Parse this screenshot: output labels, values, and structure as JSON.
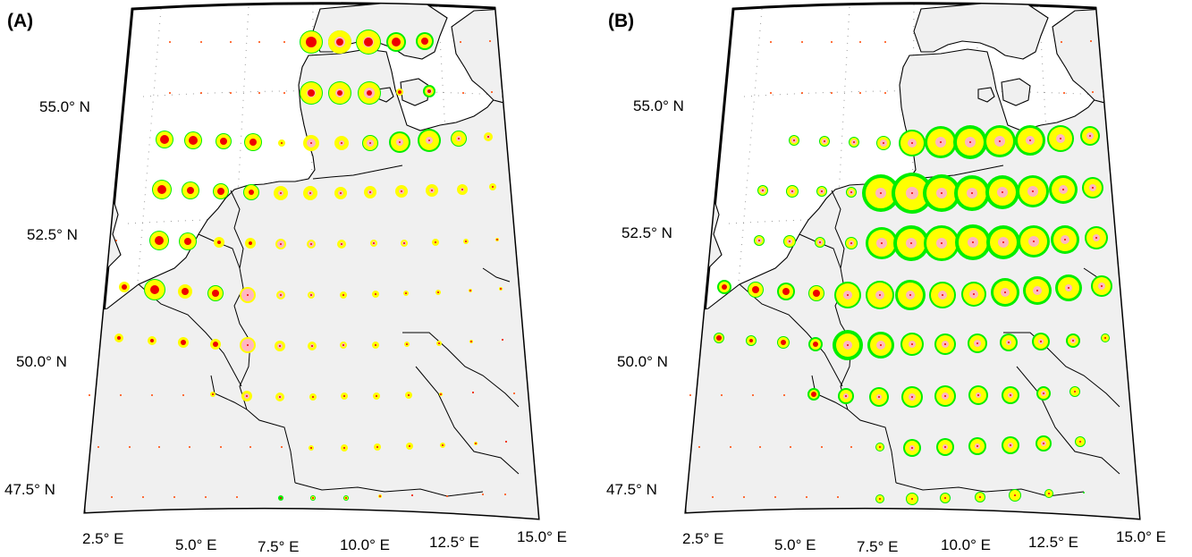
{
  "panels": [
    {
      "label": "(A)",
      "lat_labels": [
        "55.0° N",
        "52.5° N",
        "50.0° N",
        "47.5° N"
      ],
      "lon_labels": [
        "2.5° E",
        "5.0° E",
        "7.5° E",
        "10.0° E",
        "12.5° E",
        "15.0° E"
      ]
    },
    {
      "label": "(B)",
      "lat_labels": [
        "55.0° N",
        "52.5° N",
        "50.0° N",
        "47.5° N"
      ],
      "lon_labels": [
        "2.5° E",
        "5.0° E",
        "7.5° E",
        "10.0° E",
        "12.5° E",
        "15.0° E"
      ]
    }
  ],
  "legend_colors": {
    "ocean": "#ffffff",
    "land": "#f0f0f0",
    "outer_ring": "#00ee00",
    "mid_ring": "#ffff00",
    "inner_fill": "#ffb6c1",
    "core": "#ee0000",
    "tiny_dot": "#ff4500"
  },
  "rings_legend": [
    "outer_ring",
    "mid_ring",
    "inner_fill",
    "core"
  ],
  "grid_lon_ticks_deg": [
    2.5,
    5.0,
    7.5,
    10.0,
    12.5,
    15.0
  ],
  "grid_lat_ticks_deg": [
    55.0,
    52.5,
    50.0,
    47.5
  ]
}
